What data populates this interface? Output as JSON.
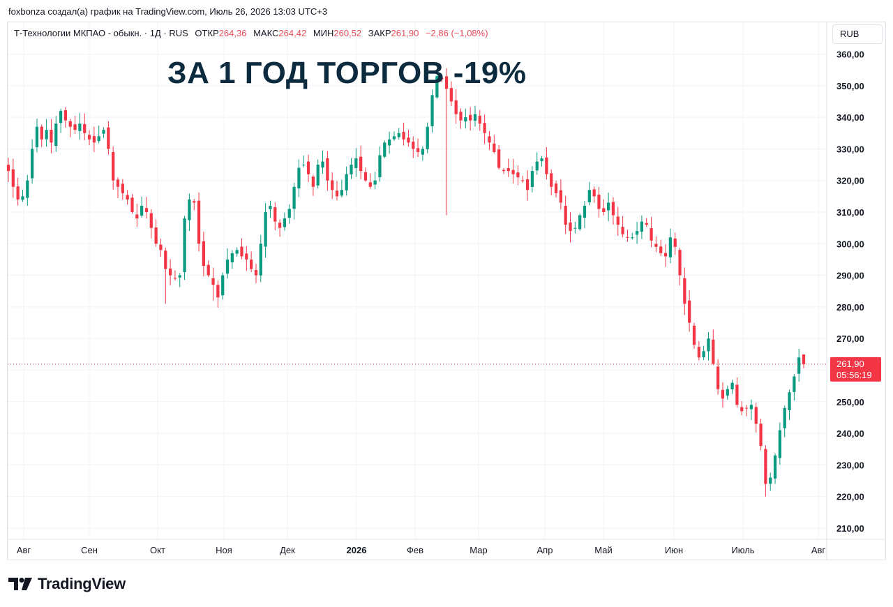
{
  "byline": "foxbonza создал(а) график на TradingView.com, Июль 26, 2026 13:03 UTC+3",
  "header": {
    "symbol": "Т-Технологии МКПАО - обыкн. · 1Д · RUS",
    "open_label": "ОТКР",
    "open_value": "264,36",
    "high_label": "МАКС",
    "high_value": "264,42",
    "low_label": "МИН",
    "low_value": "260,52",
    "close_label": "ЗАКР",
    "close_value": "261,90",
    "change": "−2,86 (−1,08%)"
  },
  "currency": "RUB",
  "overlay_title": "ЗА 1 ГОД ТОРГОВ -19%",
  "price_label": {
    "price": "261,90",
    "countdown": "05:56:19"
  },
  "brand": "TradingView",
  "colors": {
    "up": "#089981",
    "down": "#f23645",
    "price_tag": "#f23645",
    "grid": "#f0f3fa",
    "title": "#0d2b3e"
  },
  "icons": {
    "logo": "tradingview-logo-icon"
  },
  "chart_data": {
    "type": "candlestick",
    "ylim": [
      205,
      365
    ],
    "y_ticks": [
      "210,00",
      "220,00",
      "230,00",
      "240,00",
      "250,00",
      "260,00",
      "270,00",
      "280,00",
      "290,00",
      "300,00",
      "310,00",
      "320,00",
      "330,00",
      "340,00",
      "350,00",
      "360,00"
    ],
    "x_ticks": [
      {
        "label": "Авг",
        "bold": false
      },
      {
        "label": "Сен",
        "bold": false
      },
      {
        "label": "Окт",
        "bold": false
      },
      {
        "label": "Ноя",
        "bold": false
      },
      {
        "label": "Дек",
        "bold": false
      },
      {
        "label": "2026",
        "bold": true
      },
      {
        "label": "Фев",
        "bold": false
      },
      {
        "label": "Мар",
        "bold": false
      },
      {
        "label": "Апр",
        "bold": false
      },
      {
        "label": "Май",
        "bold": false
      },
      {
        "label": "Июн",
        "bold": false
      },
      {
        "label": "Июль",
        "bold": false
      },
      {
        "label": "Авг",
        "bold": false
      }
    ],
    "last_close": 261.9,
    "closes": [
      323,
      318,
      314,
      315,
      320,
      330,
      337,
      333,
      336,
      332,
      338,
      342,
      339,
      337,
      336,
      338,
      335,
      333,
      332,
      334,
      336,
      330,
      320,
      318,
      316,
      314,
      310,
      308,
      312,
      310,
      305,
      300,
      298,
      292,
      290,
      289,
      290,
      308,
      314,
      313,
      300,
      293,
      290,
      287,
      283,
      290,
      295,
      297,
      298,
      296,
      295,
      292,
      290,
      300,
      310,
      312,
      307,
      305,
      308,
      311,
      318,
      324,
      325,
      322,
      318,
      325,
      326,
      320,
      317,
      315,
      317,
      322,
      325,
      327,
      323,
      320,
      318,
      320,
      328,
      332,
      333,
      334,
      335,
      333,
      332,
      330,
      329,
      330,
      337,
      347,
      353,
      352,
      349,
      345,
      341,
      339,
      340,
      339,
      341,
      338,
      335,
      332,
      329,
      324,
      323,
      323,
      322,
      321,
      320,
      317,
      323,
      326,
      327,
      322,
      318,
      316,
      313,
      306,
      304,
      305,
      309,
      312,
      317,
      315,
      311,
      310,
      313,
      309,
      306,
      303,
      302,
      302,
      304,
      307,
      306,
      301,
      299,
      297,
      296,
      302,
      299,
      290,
      281,
      275,
      268,
      264,
      266,
      270,
      262,
      254,
      251,
      254,
      256,
      249,
      247,
      248,
      249,
      243,
      236,
      224,
      226,
      233,
      241,
      248,
      253,
      258,
      264,
      261.9
    ]
  }
}
